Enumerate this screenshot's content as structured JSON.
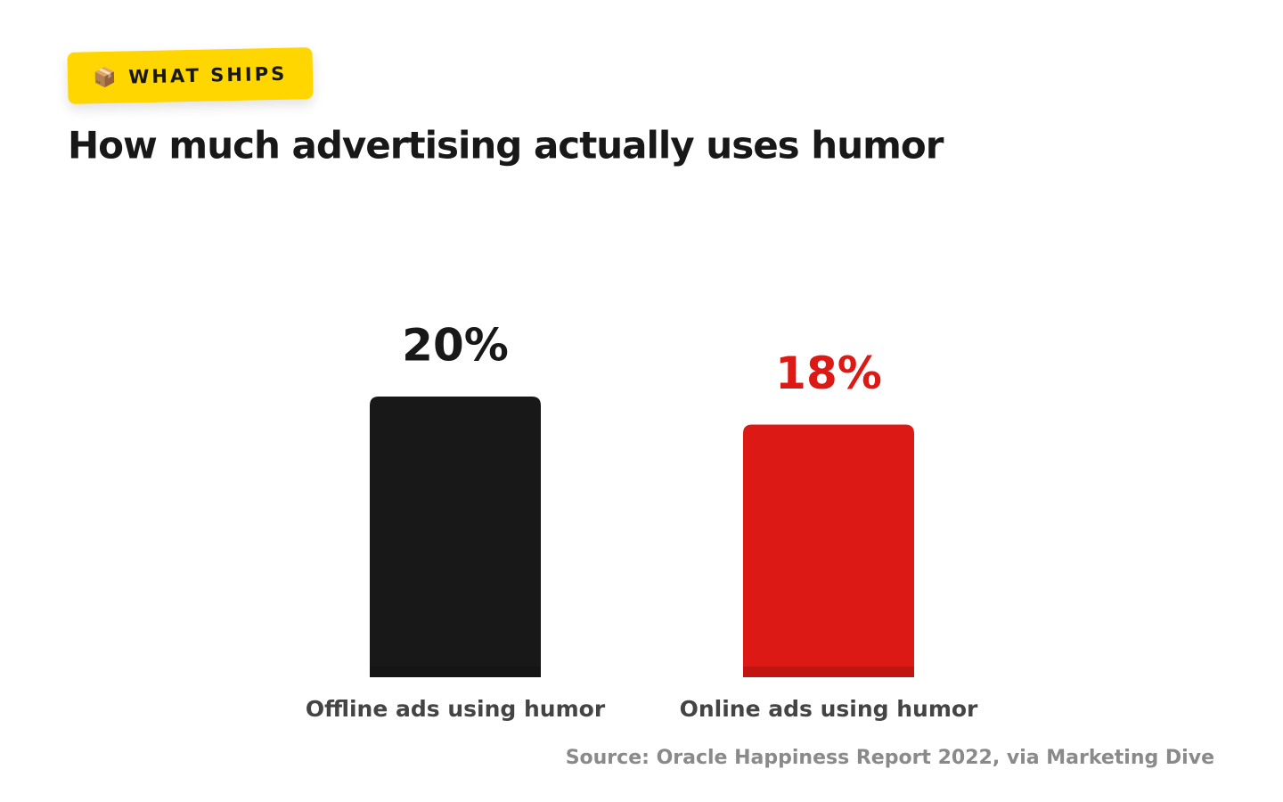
{
  "badge": "📦 WHAT SHIPS",
  "chart_data": {
    "type": "bar",
    "title": "How much advertising actually uses humor",
    "categories": [
      "Offline ads using humor",
      "Online ads using humor"
    ],
    "values": [
      20,
      18
    ],
    "value_labels": [
      "20%",
      "18%"
    ],
    "colors": [
      "#181818",
      "#dc1914"
    ],
    "source": "Source: Oracle Happiness Report 2022, via Marketing Dive"
  }
}
